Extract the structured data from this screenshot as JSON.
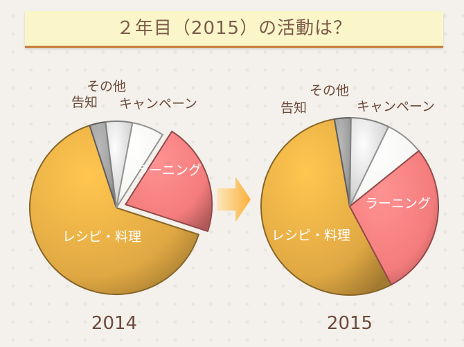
{
  "title": "２年目（2015）の活動は？",
  "colors": {
    "recipe": "#e0a843",
    "learning": "#f47c7c",
    "campaign": "#f6f6f4",
    "other": "#d6d6d6",
    "notice": "#9d9d9d",
    "arrow": "#fbb03b"
  },
  "chart_data": [
    {
      "type": "pie",
      "year_label": "2014",
      "categories": [
        "レシピ・料理",
        "告知",
        "その他",
        "キャンペーン",
        "ラーニング"
      ],
      "values": [
        65,
        3,
        5,
        6,
        21
      ]
    },
    {
      "type": "pie",
      "year_label": "2015",
      "categories": [
        "レシピ・料理",
        "告知",
        "その他",
        "キャンペーン",
        "ラーニング"
      ],
      "values": [
        55,
        3,
        7,
        7,
        28
      ]
    }
  ]
}
